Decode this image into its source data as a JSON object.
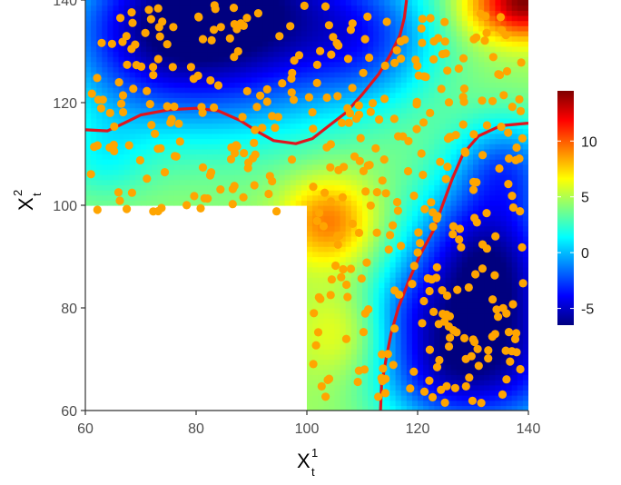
{
  "chart_data": {
    "type": "heatmap",
    "title": "",
    "xlabel": {
      "main": "X",
      "sub": "t",
      "sup": "1"
    },
    "ylabel": {
      "main": "X",
      "sub": "t",
      "sup": "2"
    },
    "xlim": [
      60,
      140
    ],
    "ylim": [
      60,
      140
    ],
    "x_ticks": [
      60,
      80,
      100,
      120,
      140
    ],
    "y_ticks": [
      60,
      80,
      100,
      120,
      140
    ],
    "x_tick_labels": [
      "60",
      "80",
      "100",
      "120",
      "140"
    ],
    "y_tick_labels": [
      "60",
      "80",
      "100",
      "120",
      "140"
    ],
    "grid": false,
    "domain_note_cut": {
      "x_max": 100,
      "y_max": 100
    },
    "colorbar": {
      "min": -6.5,
      "max": 14.5,
      "ticks": [
        -5,
        0,
        5,
        10
      ],
      "tick_labels": [
        "-5",
        "0",
        "5",
        "10"
      ],
      "placement": "right",
      "colors": [
        "#00007F",
        "#0000FF",
        "#007FFF",
        "#00FFFF",
        "#7FFF7F",
        "#FFFF00",
        "#FF7F00",
        "#FF0000",
        "#7F0000"
      ]
    },
    "zero_contour_color": "#E0141E",
    "zero_contours": [
      [
        [
          60,
          114.7
        ],
        [
          64,
          114.5
        ],
        [
          67,
          116.0
        ],
        [
          70,
          117.6
        ],
        [
          75,
          118.6
        ],
        [
          80,
          118.9
        ],
        [
          84,
          118.4
        ],
        [
          88,
          116.5
        ],
        [
          91,
          114.4
        ],
        [
          94,
          112.6
        ],
        [
          98,
          112.0
        ],
        [
          101,
          113.0
        ],
        [
          104,
          115.5
        ],
        [
          107,
          118.0
        ],
        [
          110,
          121.6
        ],
        [
          113,
          125.6
        ],
        [
          115,
          129.2
        ],
        [
          116.8,
          133.1
        ],
        [
          117.6,
          136.6
        ],
        [
          118,
          140
        ]
      ],
      [
        [
          113.3,
          60
        ],
        [
          113.5,
          65
        ],
        [
          114.3,
          70
        ],
        [
          115.2,
          75
        ],
        [
          116.5,
          80
        ],
        [
          118.3,
          85
        ],
        [
          120.3,
          90
        ],
        [
          122.8,
          95
        ],
        [
          124.5,
          100
        ],
        [
          126.2,
          105
        ],
        [
          128.2,
          110
        ],
        [
          131,
          113.5
        ],
        [
          135,
          115.5
        ],
        [
          140,
          116.0
        ]
      ]
    ],
    "points_color": "#FFA500",
    "points_count": 440,
    "points_seed": 42
  }
}
